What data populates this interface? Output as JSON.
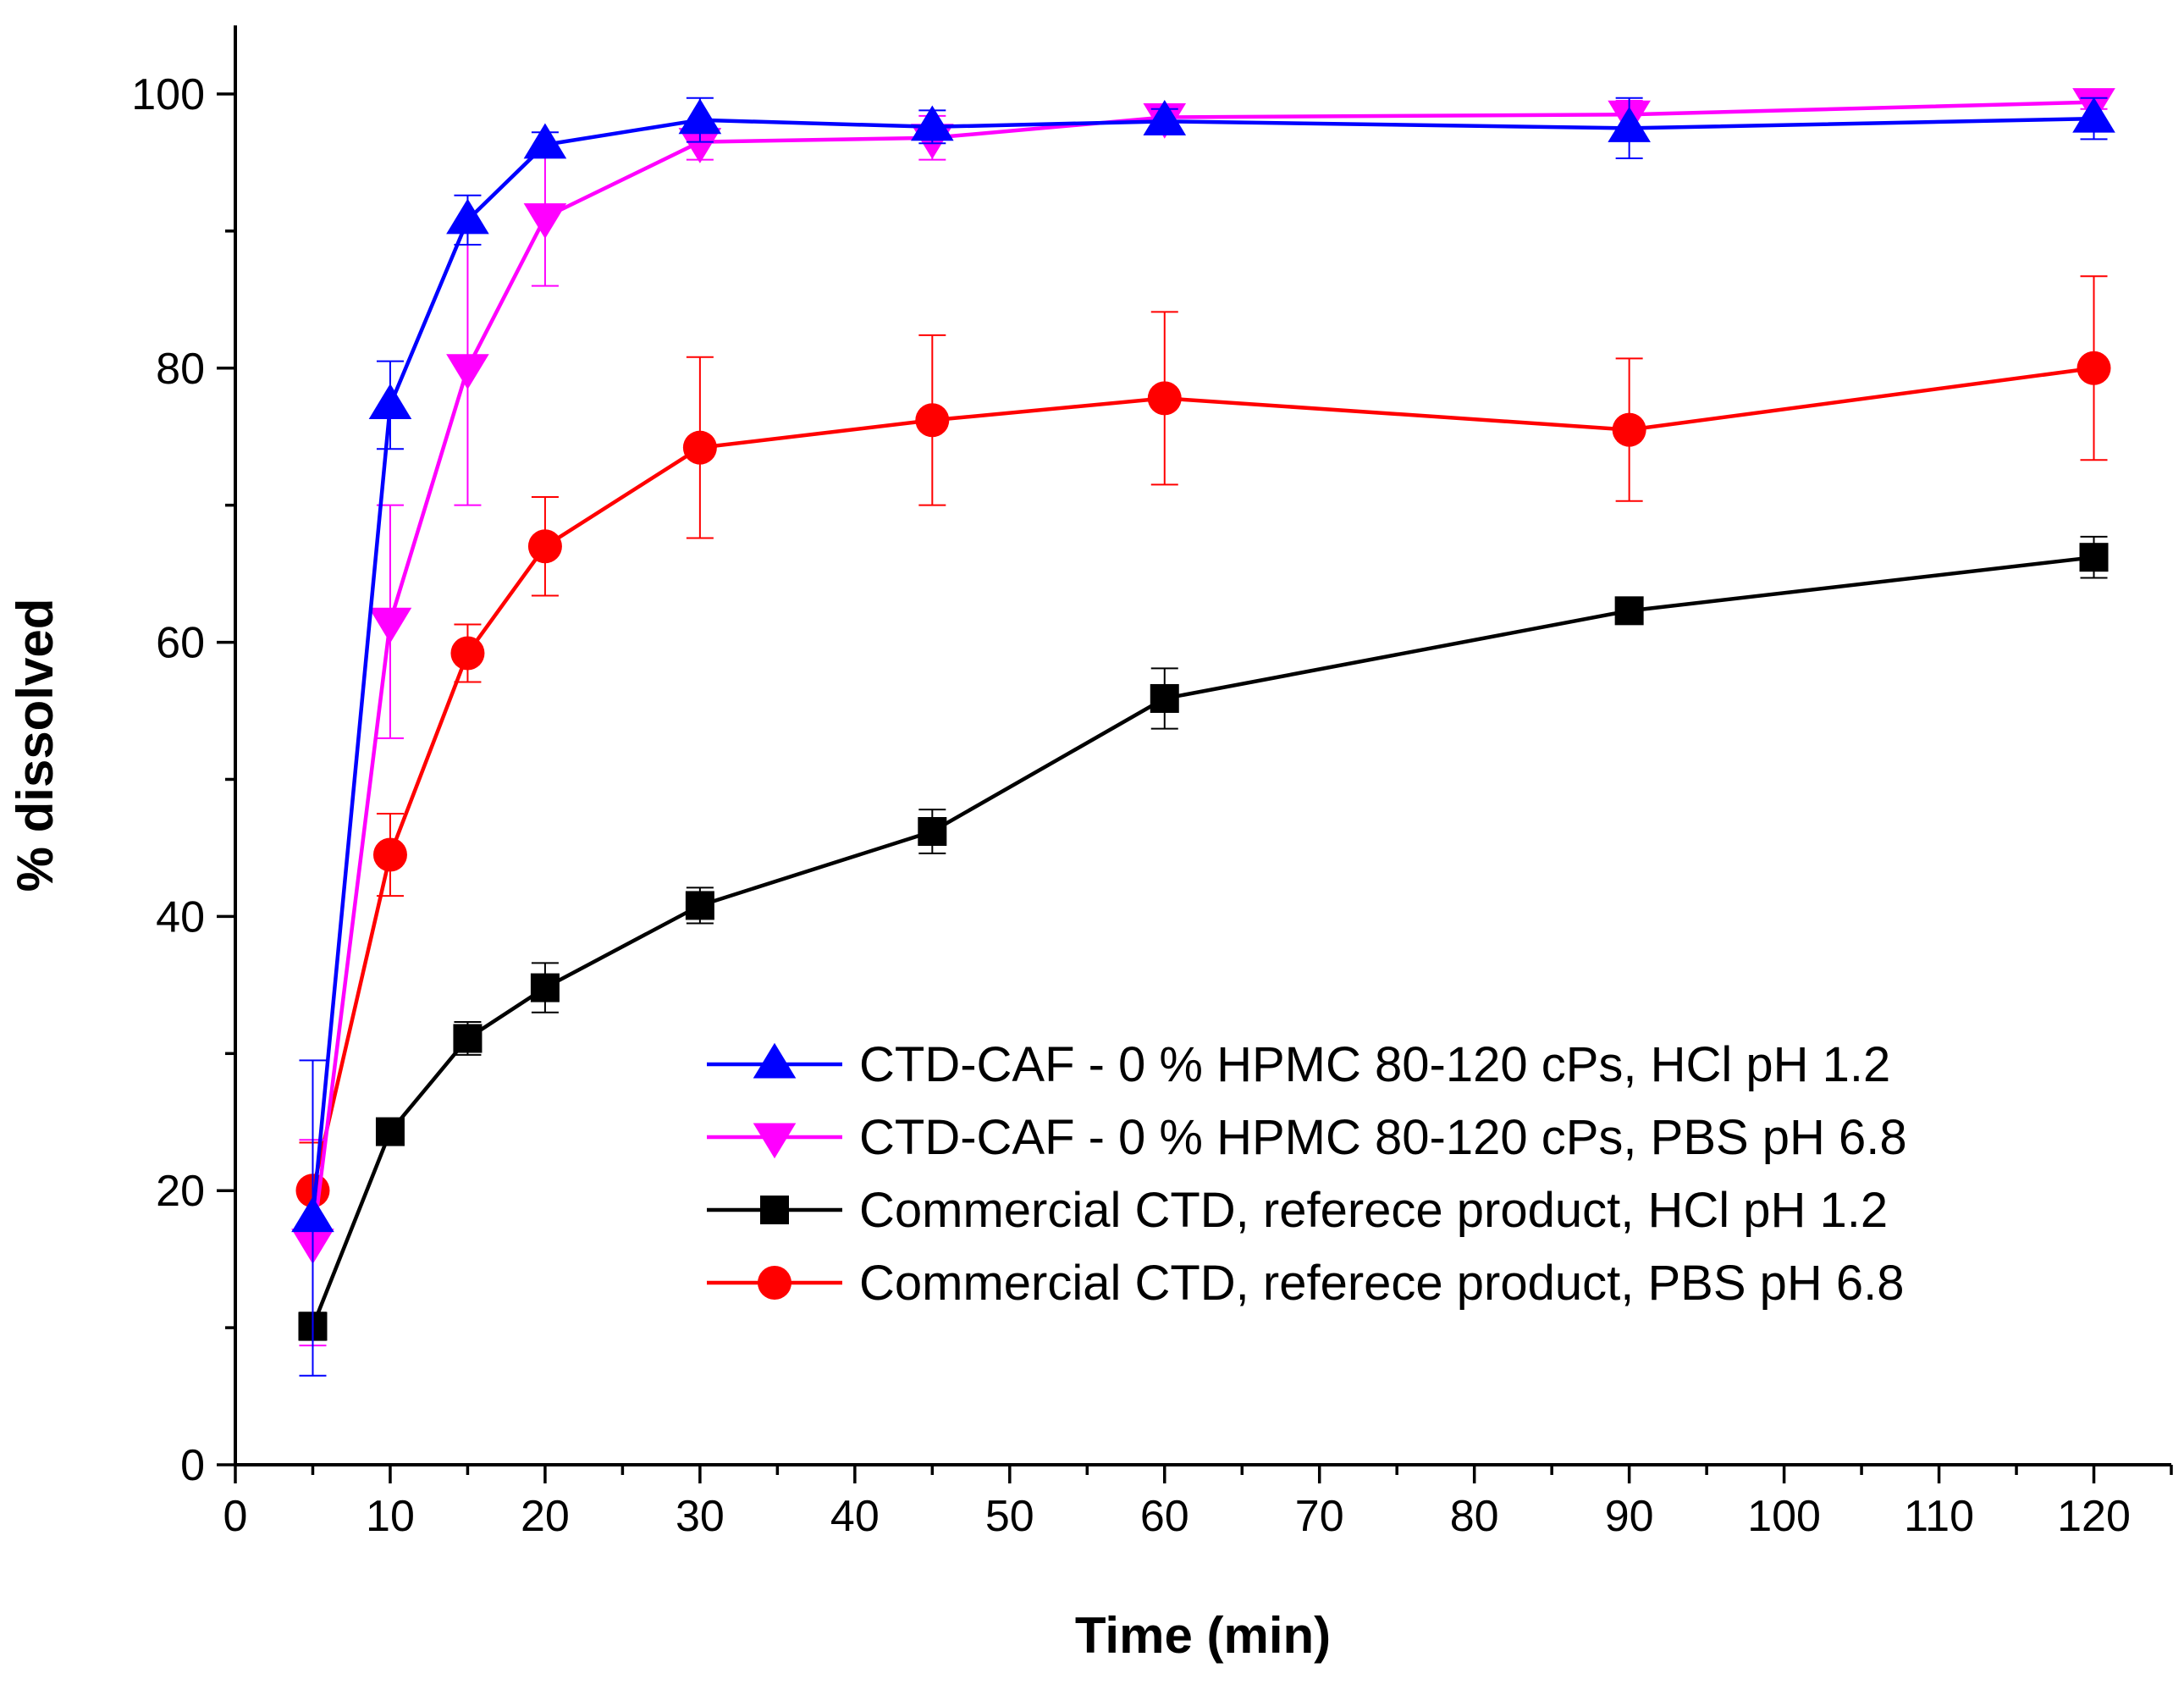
{
  "chart_data": {
    "type": "line",
    "xlabel": "Time (min)",
    "ylabel": "% dissolved",
    "xlim": [
      0,
      125
    ],
    "ylim": [
      0,
      105
    ],
    "xticks": [
      0,
      10,
      20,
      30,
      40,
      50,
      60,
      70,
      80,
      90,
      100,
      110,
      120
    ],
    "yticks": [
      0,
      20,
      40,
      60,
      80,
      100
    ],
    "grid": false,
    "legend_position": "lower-right",
    "series": [
      {
        "name": "CTD-CAF - 0 % HPMC 80-120 cPs, HCl pH 1.2",
        "color": "#0000ff",
        "marker": "triangle-up",
        "x": [
          5,
          10,
          15,
          20,
          30,
          45,
          60,
          90,
          120
        ],
        "y": [
          18,
          77.3,
          90.8,
          96.3,
          98.1,
          97.6,
          98.0,
          97.5,
          98.2
        ],
        "err": [
          11.5,
          3.2,
          1.8,
          0.9,
          1.6,
          1.2,
          0.9,
          2.2,
          1.5
        ]
      },
      {
        "name": "CTD-CAF - 0 % HPMC 80-120 cPs, PBS pH 6.8",
        "color": "#ff00ff",
        "marker": "triangle-down",
        "x": [
          5,
          10,
          15,
          20,
          30,
          45,
          60,
          90,
          120
        ],
        "y": [
          16.2,
          61.5,
          80.0,
          91.0,
          96.5,
          96.8,
          98.3,
          98.5,
          99.4
        ],
        "err": [
          7.5,
          8.5,
          10.0,
          5.0,
          1.3,
          1.6,
          0.7,
          1.0,
          0.5
        ]
      },
      {
        "name": "Commercial CTD, referece product, HCl pH 1.2",
        "color": "#000000",
        "marker": "square",
        "x": [
          5,
          10,
          15,
          20,
          30,
          45,
          60,
          90,
          120
        ],
        "y": [
          10.1,
          24.3,
          31.1,
          34.8,
          40.8,
          46.2,
          55.9,
          62.3,
          66.2
        ],
        "err": [
          1.0,
          0.6,
          1.2,
          1.8,
          1.3,
          1.6,
          2.2,
          0.9,
          1.5
        ]
      },
      {
        "name": "Commercial CTD, referece product, PBS pH 6.8",
        "color": "#ff0000",
        "marker": "circle",
        "x": [
          5,
          10,
          15,
          20,
          30,
          45,
          60,
          90,
          120
        ],
        "y": [
          20.0,
          44.5,
          59.2,
          67.0,
          74.2,
          76.2,
          77.8,
          75.5,
          80.0
        ],
        "err": [
          3.5,
          3.0,
          2.1,
          3.6,
          6.6,
          6.2,
          6.3,
          5.2,
          6.7
        ]
      }
    ]
  }
}
